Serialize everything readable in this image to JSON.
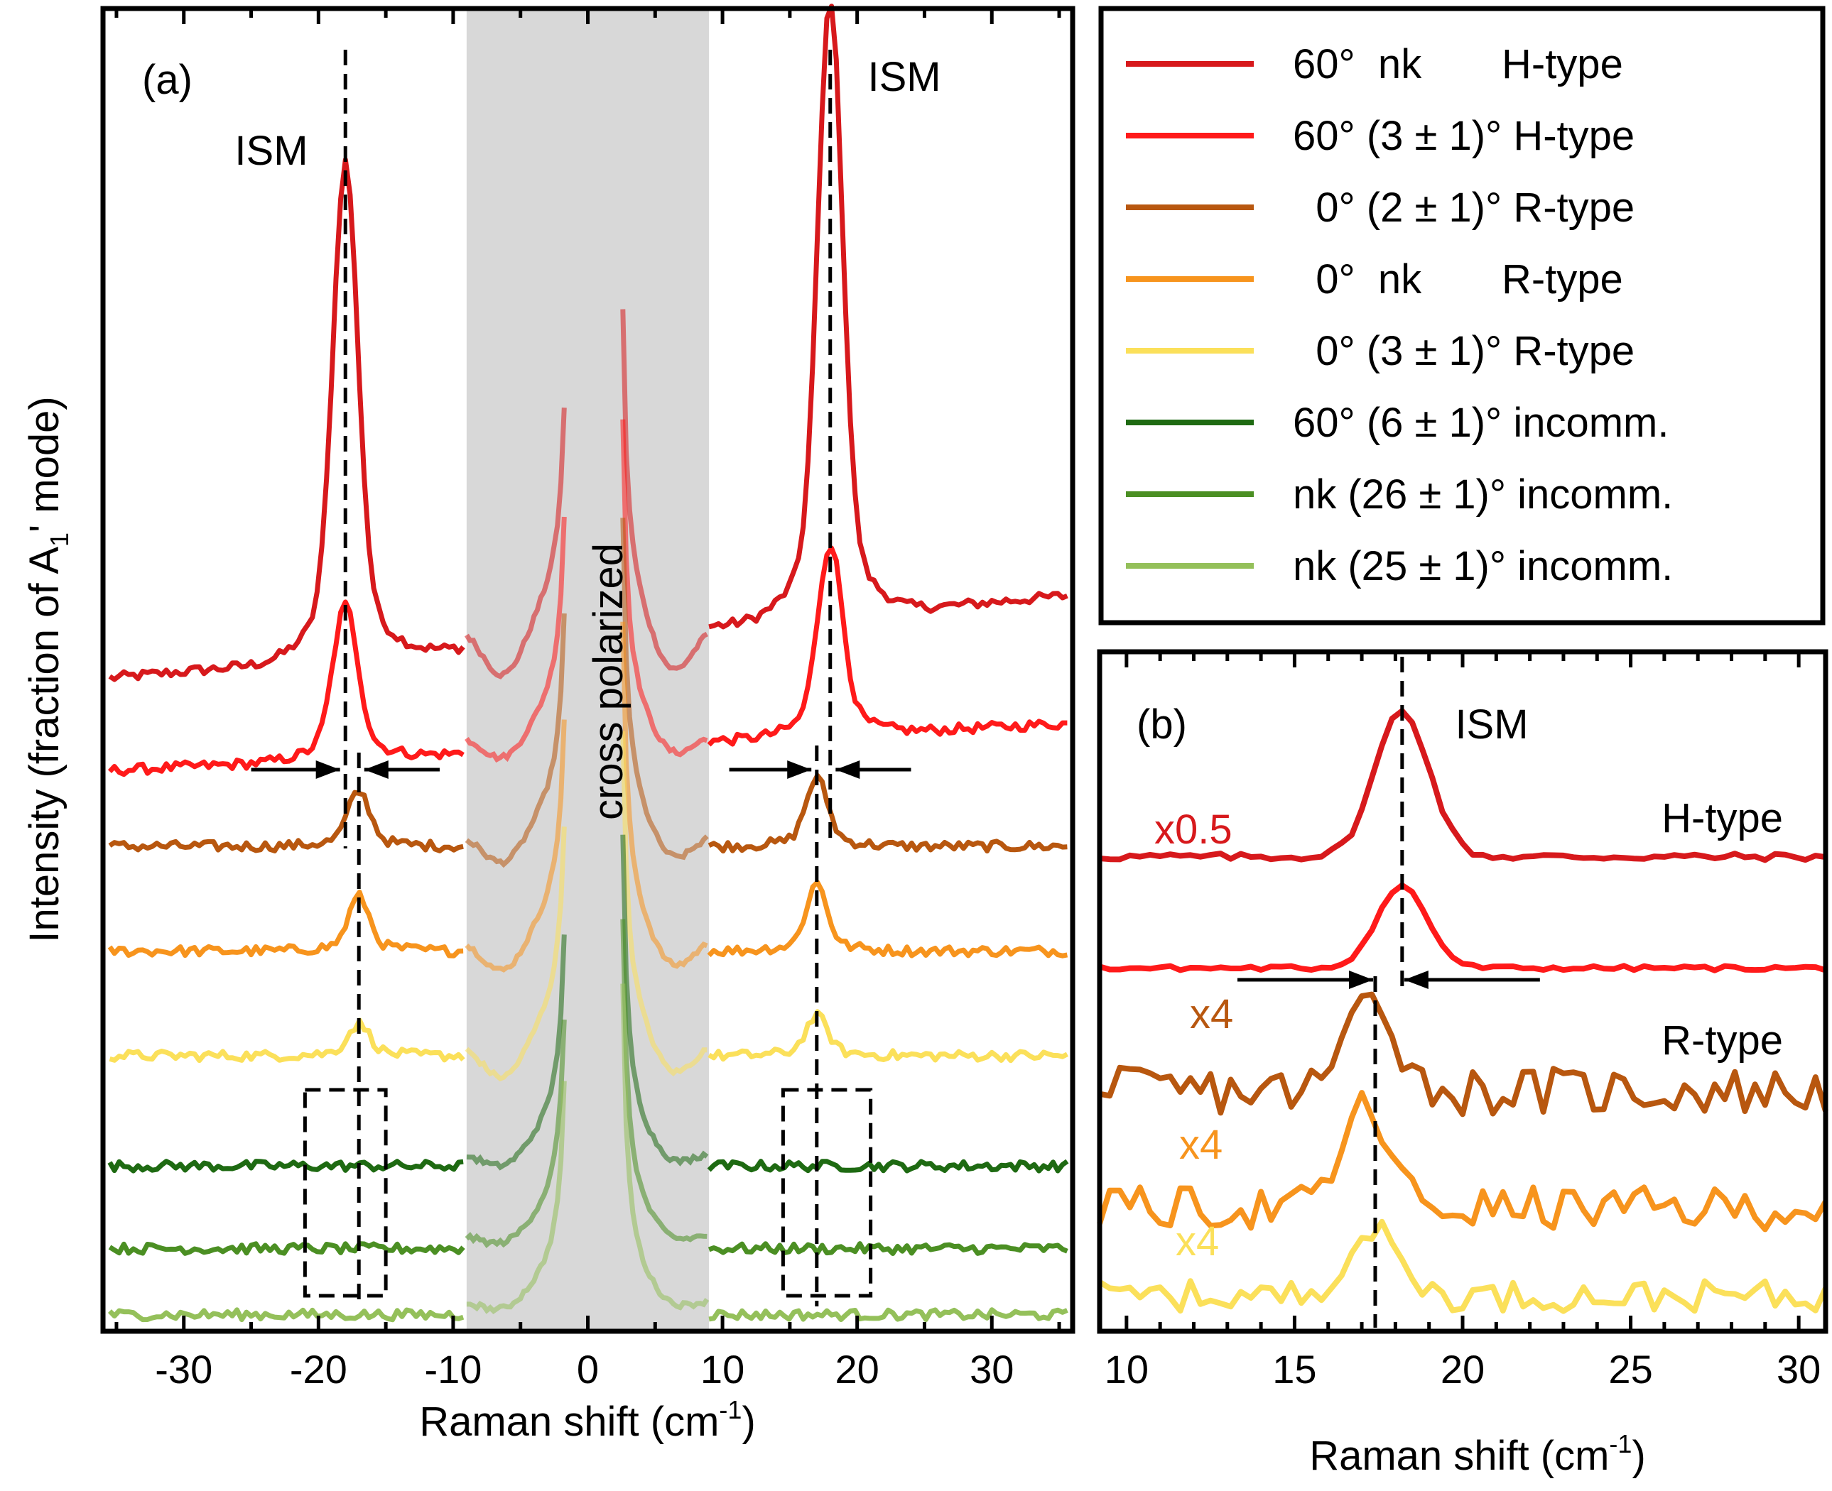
{
  "colors": {
    "60_nk_H": "#d7191c",
    "60_3_H": "#ff1a1a",
    "0_2_R": "#b8570f",
    "0_nk_R": "#f7941d",
    "0_3_R": "#fbe05a",
    "60_6_incomm": "#1e6a12",
    "nk_26_incomm": "#4b8f23",
    "nk_25_incomm": "#94c05a",
    "cross_polarized_band": "#d8d8d8"
  },
  "legend": [
    {
      "key": "60_nk_H",
      "label": "60°  nk       H-type"
    },
    {
      "key": "60_3_H",
      "label": "60° (3 ± 1)° H-type"
    },
    {
      "key": "0_2_R",
      "label": "  0° (2 ± 1)° R-type"
    },
    {
      "key": "0_nk_R",
      "label": "  0°  nk       R-type"
    },
    {
      "key": "0_3_R",
      "label": "  0° (3 ± 1)° R-type"
    },
    {
      "key": "60_6_incomm",
      "label": "60° (6 ± 1)° incomm."
    },
    {
      "key": "nk_26_incomm",
      "label": "nk (26 ± 1)° incomm."
    },
    {
      "key": "nk_25_incomm",
      "label": "nk (25 ± 1)° incomm."
    }
  ],
  "chart_data": [
    {
      "type": "line",
      "panel": "(a)",
      "xlabel_main": "Raman shift (cm",
      "xlabel_sup": "-1",
      "xlabel_close": ")",
      "ylabel_main": "Intensity (fraction of A",
      "ylabel_sub": "1",
      "ylabel_rest": "' mode)",
      "xlim": [
        -36,
        36
      ],
      "xticks": [
        -30,
        -20,
        -10,
        0,
        10,
        20,
        30
      ],
      "ylim": [
        -1.6,
        10.4
      ],
      "grid": false,
      "annotations": {
        "ism_left": "ISM",
        "ism_right": "ISM",
        "band_label": "cross polarized",
        "band_range": [
          -9,
          9
        ],
        "dashed_lines": [
          -18.0,
          -17.0,
          17.0,
          18.0
        ],
        "dashed_boxes": [
          [
            -21,
            -15
          ],
          [
            14.5,
            21
          ]
        ]
      },
      "series": [
        {
          "key": "60_nk_H",
          "offset": 4.7,
          "peak_pos": 18,
          "peak_height": 5.0,
          "peak_width": 0.9,
          "background": 0.25,
          "slope": 0.035,
          "dip_depth": 0.55
        },
        {
          "key": "60_3_H",
          "offset": 3.7,
          "peak_pos": 18,
          "peak_height": 1.55,
          "peak_width": 0.9,
          "background": 0.2,
          "slope": 0.02,
          "dip_depth": 0.3
        },
        {
          "key": "0_2_R",
          "offset": 2.8,
          "peak_pos": 17,
          "peak_height": 0.55,
          "peak_width": 0.8,
          "background": 0.08,
          "slope": 0.0,
          "dip_depth": 0.35
        },
        {
          "key": "0_nk_R",
          "offset": 1.85,
          "peak_pos": 17,
          "peak_height": 0.55,
          "peak_width": 0.75,
          "background": 0.08,
          "slope": 0.0,
          "dip_depth": 0.38
        },
        {
          "key": "0_3_R",
          "offset": 0.9,
          "peak_pos": 17,
          "peak_height": 0.32,
          "peak_width": 0.8,
          "background": 0.06,
          "slope": 0.0,
          "dip_depth": 0.4
        },
        {
          "key": "60_6_incomm",
          "offset": -0.1,
          "peak_pos": 17,
          "peak_height": 0.0,
          "peak_width": 0.8,
          "background": 0.0,
          "slope": 0.0,
          "dip_depth": 0.2
        },
        {
          "key": "nk_26_incomm",
          "offset": -0.85,
          "peak_pos": 17,
          "peak_height": 0.0,
          "peak_width": 0.8,
          "background": 0.0,
          "slope": 0.0,
          "dip_depth": 0.15
        },
        {
          "key": "nk_25_incomm",
          "offset": -1.45,
          "peak_pos": 17,
          "peak_height": 0.0,
          "peak_width": 0.8,
          "background": 0.0,
          "slope": 0.0,
          "dip_depth": 0.15
        }
      ]
    },
    {
      "type": "line",
      "panel": "(b)",
      "xlabel_main": "Raman shift (cm",
      "xlabel_sup": "-1",
      "xlabel_close": ")",
      "xlim": [
        9.2,
        30.8
      ],
      "xticks": [
        10,
        15,
        20,
        25,
        30
      ],
      "ylim": [
        -0.6,
        5.2
      ],
      "grid": false,
      "annotations": {
        "ism": "ISM",
        "h_type": "H-type",
        "r_type": "R-type",
        "dashed_lines": [
          17.4,
          18.2
        ]
      },
      "series": [
        {
          "key": "60_nk_H",
          "scale_label": "x0.5",
          "offset": 3.45,
          "peak_pos": 18.2,
          "peak_height": 1.25,
          "peak_width": 0.8,
          "noise": 0.03
        },
        {
          "key": "60_3_H",
          "offset": 2.5,
          "peak_pos": 18.2,
          "peak_height": 0.7,
          "peak_width": 0.75,
          "noise": 0.02
        },
        {
          "key": "0_2_R",
          "scale_label": "x4",
          "offset": 1.45,
          "peak_pos": 17.3,
          "peak_height": 0.85,
          "peak_width": 0.7,
          "noise": 0.2
        },
        {
          "key": "0_nk_R",
          "scale_label": "x4",
          "offset": 0.45,
          "peak_pos": 17.1,
          "peak_height": 0.85,
          "peak_width": 0.7,
          "noise": 0.18
        },
        {
          "key": "0_3_R",
          "scale_label": "x4",
          "offset": -0.3,
          "peak_pos": 17.3,
          "peak_height": 0.55,
          "peak_width": 0.8,
          "noise": 0.13
        }
      ]
    }
  ]
}
